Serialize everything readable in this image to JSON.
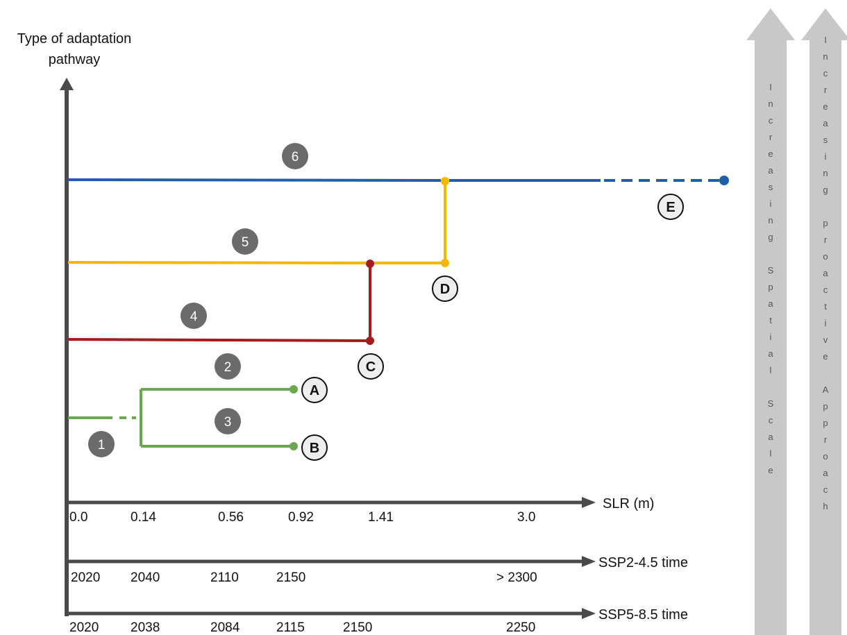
{
  "y_axis_title": [
    "Type of adaptation",
    "pathway"
  ],
  "axes": [
    {
      "name": "SLR (m)",
      "ticks": [
        "0.0",
        "0.14",
        "0.56",
        "0.92",
        "1.41",
        "3.0"
      ]
    },
    {
      "name": "SSP2-4.5 time",
      "ticks": [
        "2020",
        "2040",
        "2110",
        "2150",
        "> 2300"
      ]
    },
    {
      "name": "SSP5-8.5 time",
      "ticks": [
        "2020",
        "2038",
        "2084",
        "2115",
        "2150",
        "2250"
      ]
    }
  ],
  "pathways": [
    {
      "id": "1",
      "color": "#6aa84f"
    },
    {
      "id": "2",
      "color": "#6aa84f",
      "end": "A"
    },
    {
      "id": "3",
      "color": "#6aa84f",
      "end": "B"
    },
    {
      "id": "4",
      "color": "#a61c1c",
      "end": "C"
    },
    {
      "id": "5",
      "color": "#f5b700",
      "end": "D"
    },
    {
      "id": "6",
      "color": "#1f5fa8",
      "end": "E"
    }
  ],
  "side_arrows": [
    {
      "text": "Increasing Spatial Scale"
    },
    {
      "text": "Increasing proactive Approach"
    }
  ],
  "colors": {
    "axis": "#4a4a4a",
    "badge": "#6b6b6b",
    "arrow": "#c8c8c8",
    "end_circle_fill": "#eeeeee"
  }
}
